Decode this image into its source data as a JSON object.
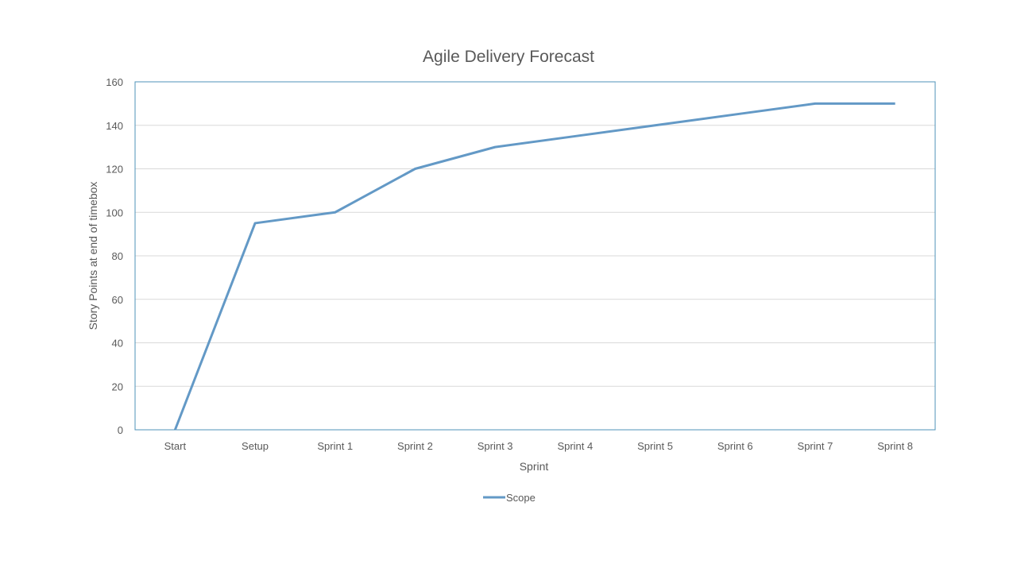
{
  "chart_data": {
    "type": "line",
    "title": "Agile Delivery Forecast",
    "xlabel": "Sprint",
    "ylabel": "Story Points at end of timebox",
    "categories": [
      "Start",
      "Setup",
      "Sprint 1",
      "Sprint 2",
      "Sprint 3",
      "Sprint 4",
      "Sprint 5",
      "Sprint 6",
      "Sprint 7",
      "Sprint 8"
    ],
    "series": [
      {
        "name": "Scope",
        "values": [
          0,
          95,
          100,
          120,
          130,
          135,
          140,
          145,
          150,
          150
        ],
        "color": "#6399c6"
      }
    ],
    "ylim": [
      0,
      160
    ],
    "yticks": [
      0,
      20,
      40,
      60,
      80,
      100,
      120,
      140,
      160
    ],
    "grid": true,
    "legend_position": "bottom"
  }
}
